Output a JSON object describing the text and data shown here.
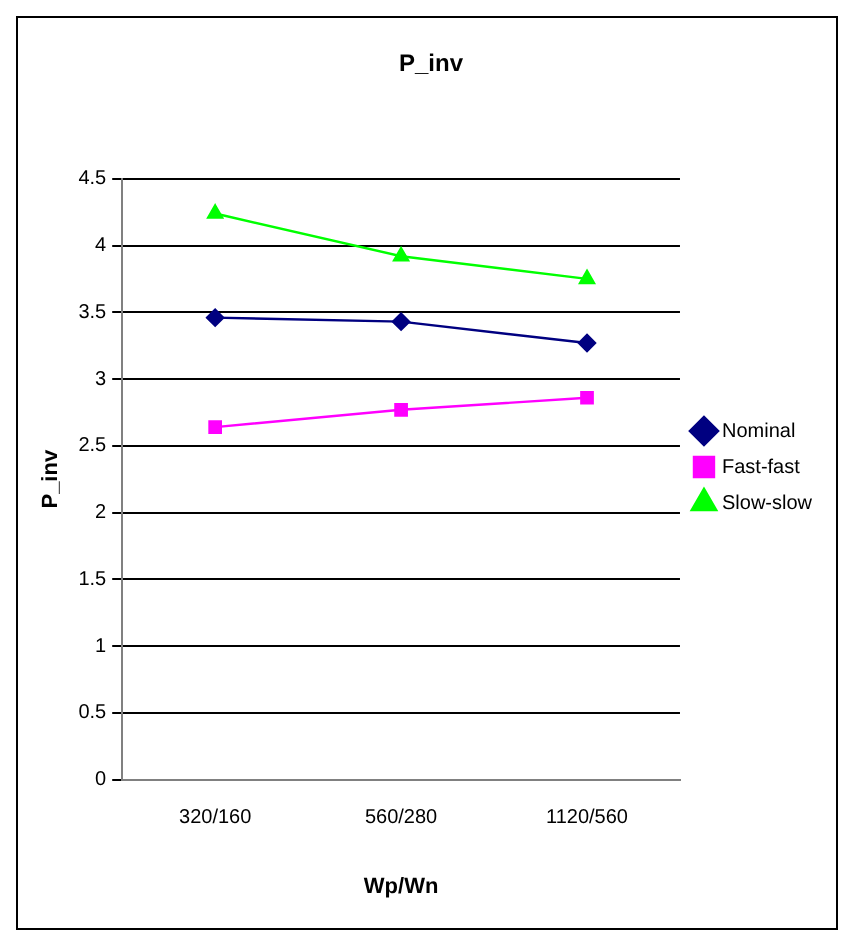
{
  "chart_data": {
    "type": "line",
    "title": "P_inv",
    "xlabel": "Wp/Wn",
    "ylabel": "P_inv",
    "categories": [
      "320/160",
      "560/280",
      "1120/560"
    ],
    "series": [
      {
        "name": "Nominal",
        "color": "#000080",
        "marker": "diamond",
        "values": [
          3.46,
          3.43,
          3.27
        ]
      },
      {
        "name": "Fast-fast",
        "color": "#ff00ff",
        "marker": "square",
        "values": [
          2.64,
          2.77,
          2.86
        ]
      },
      {
        "name": "Slow-slow",
        "color": "#00ff00",
        "marker": "triangle",
        "values": [
          4.24,
          3.92,
          3.75
        ]
      }
    ],
    "ylim": [
      0,
      4.5
    ],
    "yticks": [
      0,
      0.5,
      1,
      1.5,
      2,
      2.5,
      3,
      3.5,
      4,
      4.5
    ],
    "grid": "y",
    "legend": "right",
    "line_style": "solid"
  }
}
